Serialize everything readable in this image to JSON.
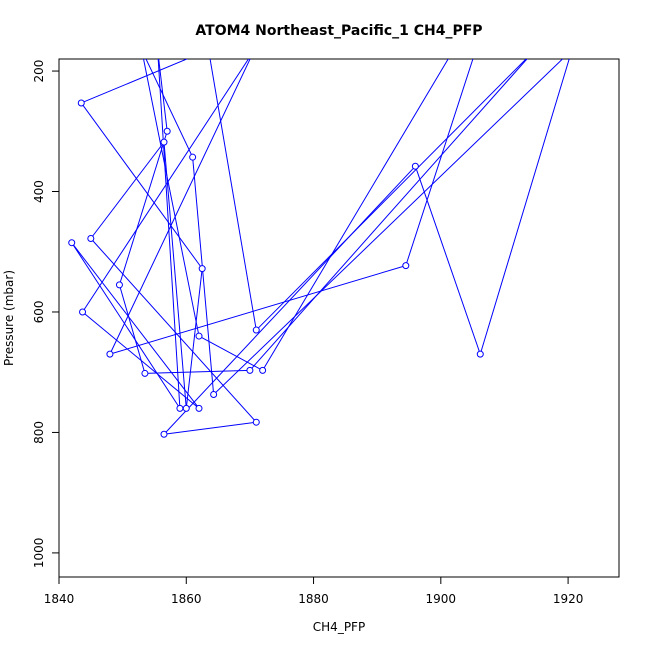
{
  "chart_data": {
    "type": "line",
    "title": "ATOM4 Northeast_Pacific_1 CH4_PFP",
    "xlabel": "CH4_PFP",
    "ylabel": "Pressure (mbar)",
    "xlim": [
      1840,
      1928
    ],
    "ylim": [
      1040,
      180
    ],
    "y_inverted": true,
    "grid": false,
    "x_ticks": [
      "1840",
      "1860",
      "1880",
      "1900",
      "1920"
    ],
    "y_ticks": [
      "200",
      "400",
      "600",
      "800",
      "1000"
    ],
    "series_color": "#0000ff",
    "series": [
      {
        "points": [
          {
            "x": 1905.5,
            "y": 165
          },
          {
            "x": 1894.5,
            "y": 523
          },
          {
            "x": 1848.0,
            "y": 670
          },
          {
            "x": 1870.7,
            "y": 165
          },
          {
            "x": 1843.7,
            "y": 600
          },
          {
            "x": 1862.0,
            "y": 760
          },
          {
            "x": 1842.0,
            "y": 485
          },
          {
            "x": 1859.0,
            "y": 760
          },
          {
            "x": 1855.5,
            "y": 165
          },
          {
            "x": 1857.0,
            "y": 300
          },
          {
            "x": 1849.5,
            "y": 555
          },
          {
            "x": 1853.5,
            "y": 702
          },
          {
            "x": 1870.0,
            "y": 697
          },
          {
            "x": 1914.8,
            "y": 165
          },
          {
            "x": 1871.0,
            "y": 630
          },
          {
            "x": 1863.5,
            "y": 165
          },
          {
            "x": 1843.5,
            "y": 253
          },
          {
            "x": 1862.5,
            "y": 528
          },
          {
            "x": 1860.0,
            "y": 760
          },
          {
            "x": 1856.5,
            "y": 318
          },
          {
            "x": 1845.0,
            "y": 478
          },
          {
            "x": 1871.0,
            "y": 783
          },
          {
            "x": 1856.5,
            "y": 803
          },
          {
            "x": 1896.0,
            "y": 358
          },
          {
            "x": 1906.2,
            "y": 670
          },
          {
            "x": 1920.6,
            "y": 165
          },
          {
            "x": 1864.3,
            "y": 737
          },
          {
            "x": 1861.0,
            "y": 343
          },
          {
            "x": 1853.0,
            "y": 165
          },
          {
            "x": 1862.0,
            "y": 640
          },
          {
            "x": 1872.0,
            "y": 697
          },
          {
            "x": 1902.0,
            "y": 165
          }
        ]
      }
    ]
  }
}
